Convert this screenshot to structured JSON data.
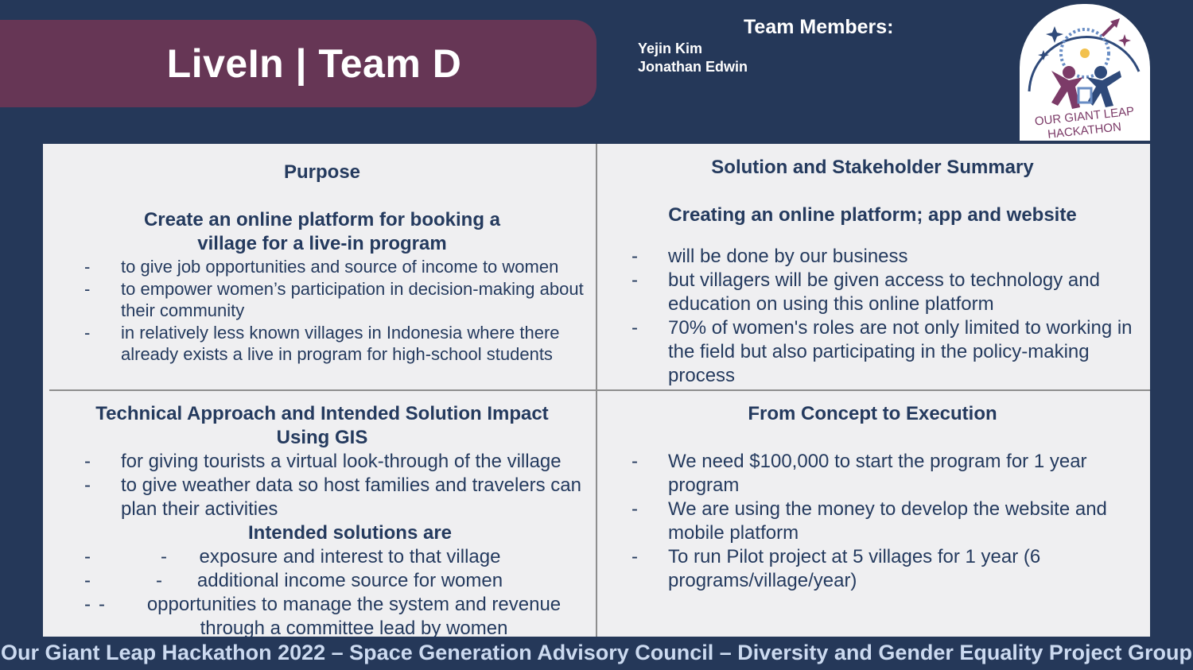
{
  "title": "LiveIn | Team D",
  "team": {
    "heading": "Team Members:",
    "members": [
      "Yejin Kim",
      "Jonathan Edwin"
    ]
  },
  "logo": {
    "text_line1": "OUR GIANT LEAP",
    "text_line2": "HACKATHON"
  },
  "purpose": {
    "heading": "Purpose",
    "subheading": "Create an online platform for booking  a village for a live-in program",
    "bullets": [
      "to  give job opportunities and source of income to women",
      "to empower women’s participation in decision-making about their community",
      "in relatively less known villages in Indonesia where there already exists a live in program for high-school students"
    ]
  },
  "solution": {
    "heading": "Solution and Stakeholder Summary",
    "subheading": "Creating an online platform; app and website",
    "bullets": [
      "will be done by our business",
      "but villagers will be given access to technology and education on using this online platform",
      "70% of women's roles are not only limited to working in the field but also participating in the policy-making process"
    ]
  },
  "technical": {
    "heading": "Technical Approach and Intended Solution Impact",
    "subheading": "Using GIS",
    "bullets": [
      "for giving tourists a virtual look-through of the village",
      "to give weather data so host families and travelers can plan their activities"
    ],
    "sub2heading": "Intended solutions are",
    "solutions": [
      "exposure and interest to that village",
      "additional income source for women",
      "opportunities to manage the system and revenue through a committee lead by women"
    ]
  },
  "execution": {
    "heading": "From Concept to Execution",
    "bullets": [
      "We need $100,000 to start the program for 1 year program",
      "We are using the money to develop the website and mobile platform",
      "To run Pilot project at 5 villages for 1 year (6 programs/village/year)"
    ]
  },
  "footer": "Our Giant Leap Hackathon 2022 – Space Generation Advisory Council – Diversity and Gender Equality Project Group",
  "colors": {
    "background": "#253859",
    "banner": "#663655",
    "text": "#243a5e",
    "panel": "#efeff1"
  }
}
